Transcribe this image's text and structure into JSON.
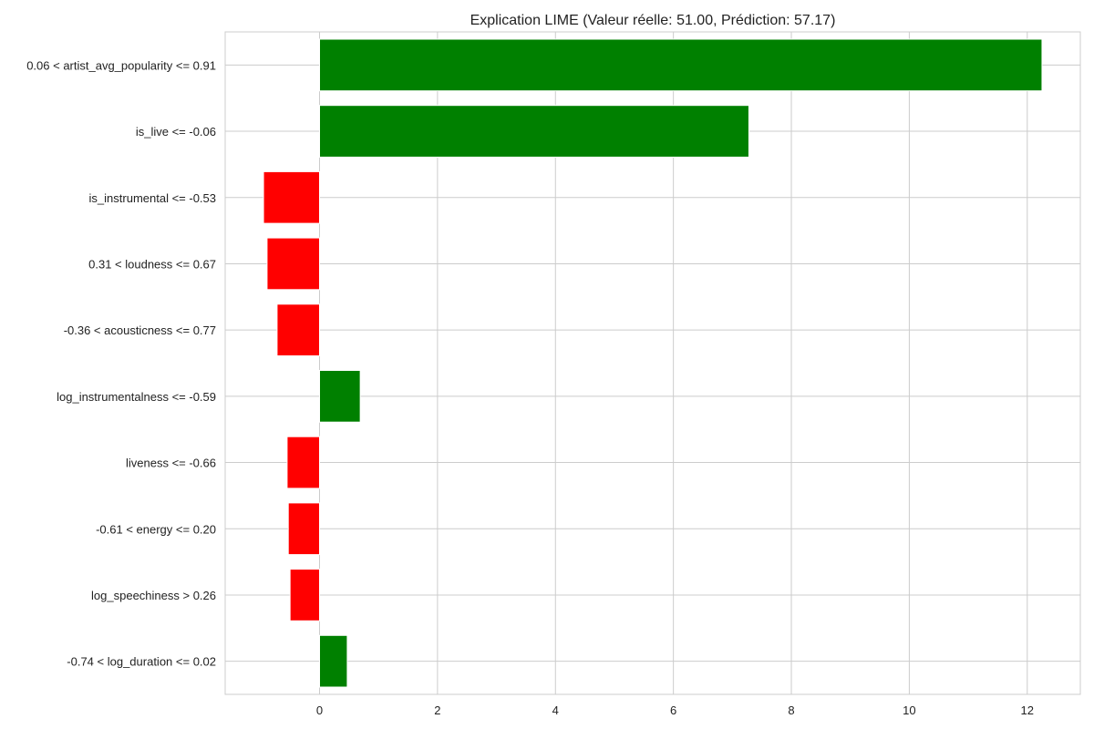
{
  "chart_data": {
    "type": "bar",
    "orientation": "horizontal",
    "title": "Explication LIME (Valeur réelle: 51.00, Prédiction: 57.17)",
    "xlabel": "",
    "ylabel": "",
    "xlim": [
      -1.6,
      12.9
    ],
    "xticks": [
      0,
      2,
      4,
      6,
      8,
      10,
      12
    ],
    "grid": true,
    "legend": "none",
    "positive_color": "#008000",
    "negative_color": "#ff0000",
    "categories": [
      "0.06 < artist_avg_popularity <= 0.91",
      "is_live <= -0.06",
      "is_instrumental <= -0.53",
      "0.31 < loudness <= 0.67",
      "-0.36 < acousticness <= 0.77",
      "log_instrumentalness <= -0.59",
      "liveness <= -0.66",
      "-0.61 < energy <= 0.20",
      "log_speechiness > 0.26",
      "-0.74 < log_duration <= 0.02"
    ],
    "values": [
      12.25,
      7.28,
      -0.95,
      -0.89,
      -0.72,
      0.69,
      -0.55,
      -0.53,
      -0.5,
      0.47
    ]
  }
}
